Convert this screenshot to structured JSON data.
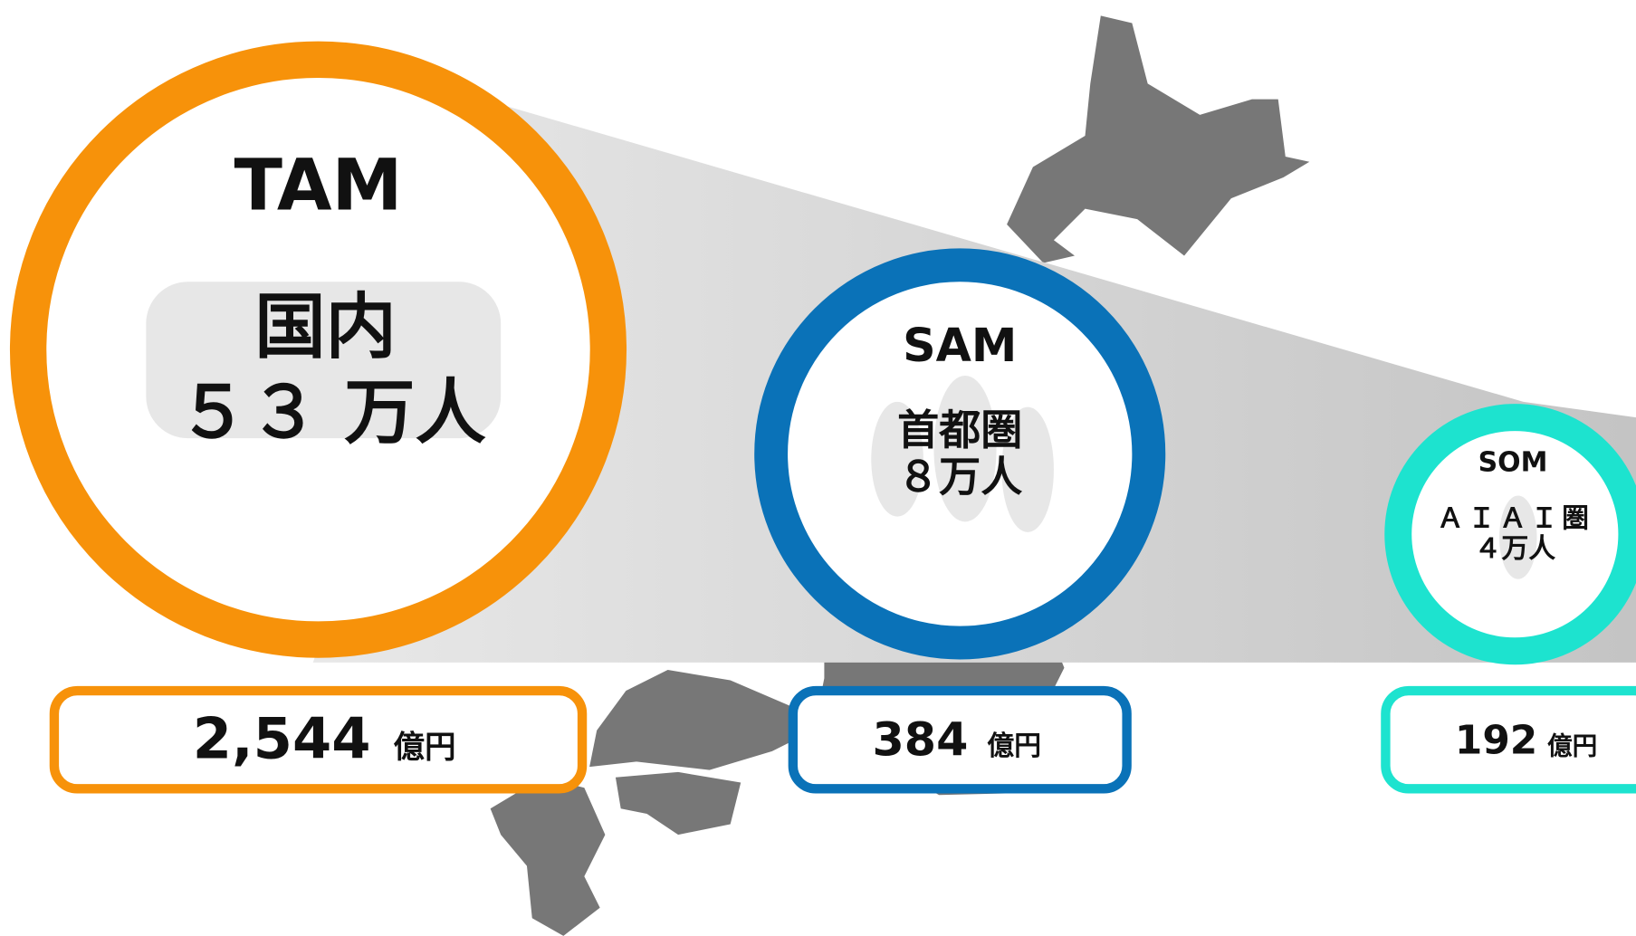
{
  "tam": {
    "label": "TAM",
    "lines": [
      "国内",
      "５３ 万人"
    ],
    "market_size": "2,544",
    "unit": "億円"
  },
  "sam": {
    "label": "SAM",
    "lines": [
      "首都圏",
      "８万人"
    ],
    "market_size": "384",
    "unit": "億円"
  },
  "som": {
    "label": "SOM",
    "lines": [
      "ＡＩＡＩ圏",
      "４万人"
    ],
    "market_size": "192",
    "unit": "億円"
  }
}
